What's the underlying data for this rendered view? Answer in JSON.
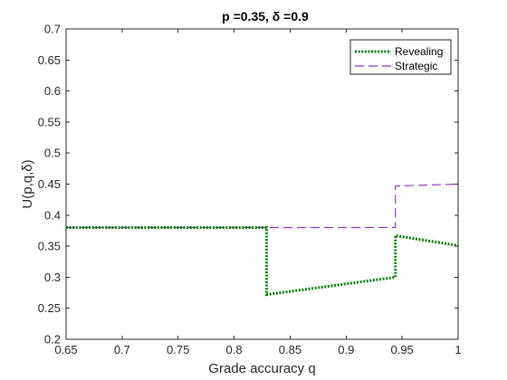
{
  "chart_data": {
    "type": "line",
    "title": "p =0.35, δ =0.9",
    "xlabel": "Grade accuracy q",
    "ylabel": "U(p,q,δ)",
    "xlim": [
      0.65,
      1.0
    ],
    "ylim": [
      0.2,
      0.7
    ],
    "xticks": [
      0.65,
      0.7,
      0.75,
      0.8,
      0.85,
      0.9,
      0.95,
      1.0
    ],
    "xtick_labels": [
      "0.65",
      "0.7",
      "0.75",
      "0.8",
      "0.85",
      "0.9",
      "0.95",
      "1"
    ],
    "yticks": [
      0.2,
      0.25,
      0.3,
      0.35,
      0.4,
      0.45,
      0.5,
      0.55,
      0.6,
      0.65,
      0.7
    ],
    "ytick_labels": [
      "0.2",
      "0.25",
      "0.3",
      "0.35",
      "0.4",
      "0.45",
      "0.5",
      "0.55",
      "0.6",
      "0.65",
      "0.7"
    ],
    "grid": false,
    "legend_position": "top-right",
    "series": [
      {
        "name": "Revealing",
        "color": "#008000",
        "style": "dotted",
        "x": [
          0.65,
          0.829,
          0.829,
          0.944,
          0.944,
          1.0
        ],
        "y": [
          0.38,
          0.38,
          0.272,
          0.3,
          0.367,
          0.351
        ]
      },
      {
        "name": "Strategic",
        "color": "#9932CC",
        "style": "dashed",
        "x": [
          0.65,
          0.944,
          0.944,
          1.0
        ],
        "y": [
          0.38,
          0.38,
          0.447,
          0.45
        ]
      }
    ]
  }
}
